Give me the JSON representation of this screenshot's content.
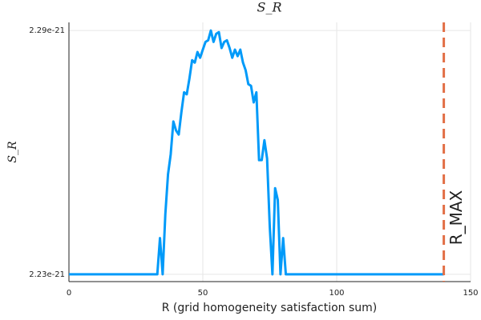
{
  "chart_data": {
    "type": "line",
    "title": "S_R",
    "x_label": "R (grid homogeneity satisfaction sum)",
    "y_label": "S_R",
    "x": [
      0,
      33,
      34,
      35,
      36,
      37,
      38,
      39,
      40,
      41,
      42,
      43,
      44,
      45,
      46,
      47,
      48,
      49,
      50,
      51,
      52,
      53,
      54,
      55,
      56,
      57,
      58,
      59,
      60,
      61,
      62,
      63,
      64,
      65,
      66,
      67,
      68,
      69,
      70,
      71,
      72,
      73,
      74,
      75,
      76,
      77,
      78,
      79,
      80,
      81,
      140
    ],
    "series": [
      {
        "color": "#009af9",
        "values": [
          2.23e-21,
          2.23e-21,
          2.2389e-21,
          2.23e-21,
          2.2448e-21,
          2.2546e-21,
          2.2595e-21,
          2.2676e-21,
          2.2654e-21,
          2.2644e-21,
          2.2699e-21,
          2.2748e-21,
          2.2743e-21,
          2.2782e-21,
          2.2827e-21,
          2.2821e-21,
          2.2847e-21,
          2.2833e-21,
          2.2853e-21,
          2.2872e-21,
          2.2876e-21,
          2.29e-21,
          2.2872e-21,
          2.2892e-21,
          2.2896e-21,
          2.2857e-21,
          2.2872e-21,
          2.2876e-21,
          2.2857e-21,
          2.2833e-21,
          2.2853e-21,
          2.2837e-21,
          2.2853e-21,
          2.2821e-21,
          2.2802e-21,
          2.2768e-21,
          2.2764e-21,
          2.2723e-21,
          2.2748e-21,
          2.2581e-21,
          2.2581e-21,
          2.263e-21,
          2.2585e-21,
          2.2418e-21,
          2.23e-21,
          2.2512e-21,
          2.2483e-21,
          2.23e-21,
          2.2389e-21,
          2.23e-21,
          2.23e-21
        ]
      }
    ],
    "vline": {
      "x": 140,
      "color": "#e26f46",
      "label": "R_MAX"
    },
    "xlim": [
      0,
      150
    ],
    "xticks": [
      0,
      50,
      100,
      150
    ],
    "ylim": [
      2.2282e-21,
      2.292e-21
    ],
    "yticks": [
      2.23e-21,
      2.29e-21
    ],
    "grid": true
  }
}
